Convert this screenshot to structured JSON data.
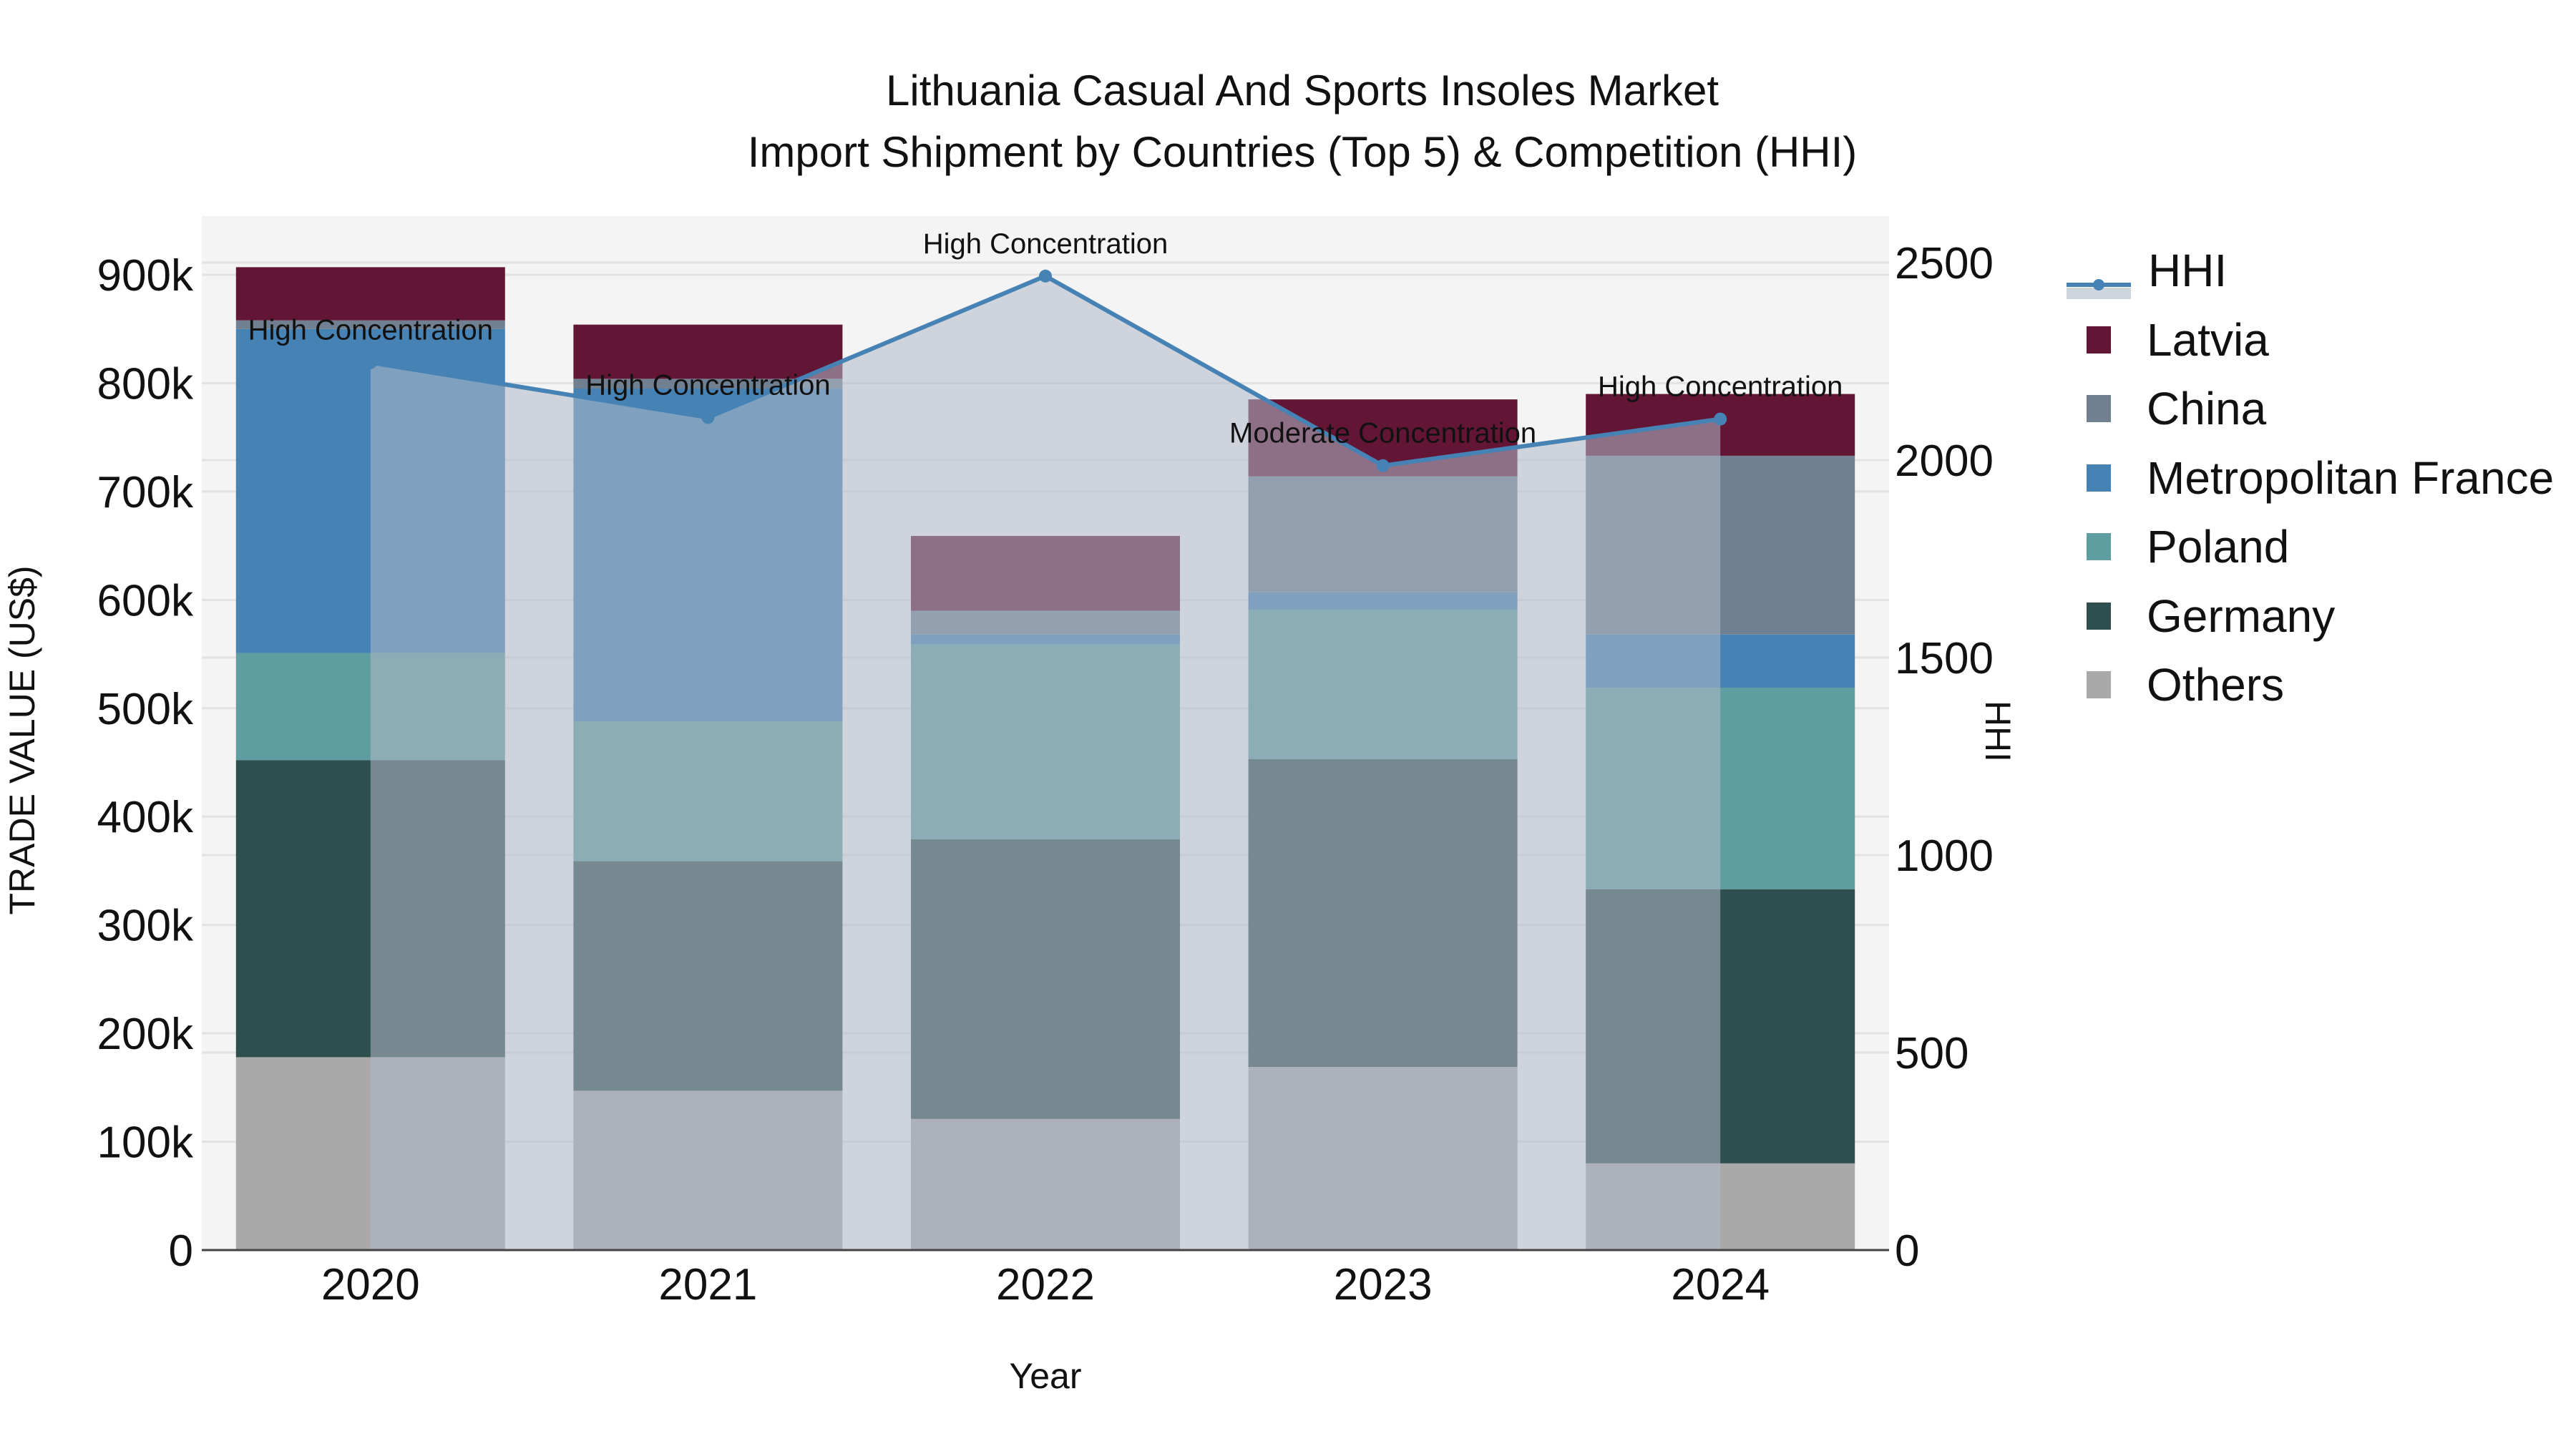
{
  "header": {
    "title_line_1": "Lithuania Casual And Sports Insoles Market",
    "title_line_2": "Import Shipment by Countries (Top 5) & Competition (HHI)"
  },
  "axes": {
    "x_title": "Year",
    "y_left_title": "TRADE VALUE (US$)",
    "y_right_title": "HHI",
    "y_left_ticks": [
      "0",
      "100k",
      "200k",
      "300k",
      "400k",
      "500k",
      "600k",
      "700k",
      "800k",
      "900k"
    ],
    "y_right_ticks": [
      "0",
      "500",
      "1000",
      "1500",
      "2000",
      "2500"
    ]
  },
  "legend": {
    "items": [
      {
        "label": "HHI",
        "kind": "line",
        "color": "#4682b4"
      },
      {
        "label": "Latvia",
        "kind": "bar",
        "color": "#631535"
      },
      {
        "label": "China",
        "kind": "bar",
        "color": "#708090"
      },
      {
        "label": "Metropolitan France",
        "kind": "bar",
        "color": "#4682b4"
      },
      {
        "label": "Poland",
        "kind": "bar",
        "color": "#5f9ea0"
      },
      {
        "label": "Germany",
        "kind": "bar",
        "color": "#2f4f4f"
      },
      {
        "label": "Others",
        "kind": "bar",
        "color": "#a9a9a9"
      }
    ]
  },
  "colors": {
    "plot_bg": "#f4f4f4",
    "hhi_line": "#4682b4",
    "hhi_fill": "rgba(176,186,200,0.55)",
    "grid": "#e2e2e2"
  },
  "chart_data": {
    "type": "bar",
    "stacked": true,
    "title": "Lithuania Casual And Sports Insoles Market\nImport Shipment by Countries (Top 5) & Competition (HHI)",
    "xlabel": "Year",
    "ylabel": "TRADE VALUE (US$)",
    "y2label": "HHI",
    "ylim": [
      0,
      950000
    ],
    "y2lim": [
      0,
      2640
    ],
    "grid": true,
    "legend_position": "right",
    "categories": [
      "2020",
      "2021",
      "2022",
      "2023",
      "2024"
    ],
    "series": [
      {
        "name": "Others",
        "color": "#a9a9a9",
        "values": [
          178000,
          147000,
          121000,
          169000,
          80000
        ]
      },
      {
        "name": "Germany",
        "color": "#2f4f4f",
        "values": [
          274000,
          212000,
          258000,
          284000,
          253000
        ]
      },
      {
        "name": "Poland",
        "color": "#5f9ea0",
        "values": [
          99000,
          129000,
          180000,
          138000,
          186000
        ]
      },
      {
        "name": "Metropolitan France",
        "color": "#4682b4",
        "values": [
          299000,
          307000,
          9000,
          16000,
          49000
        ]
      },
      {
        "name": "China",
        "color": "#708090",
        "values": [
          8000,
          9000,
          22000,
          107000,
          165000
        ]
      },
      {
        "name": "Latvia",
        "color": "#631535",
        "values": [
          49000,
          50000,
          69000,
          71000,
          57000
        ]
      }
    ],
    "line_series": {
      "name": "HHI",
      "axis": "right",
      "type": "line+area",
      "color": "#4682b4",
      "values": [
        2247,
        2108,
        2466,
        1986,
        2104
      ],
      "annotations": [
        "High Concentration",
        "High Concentration",
        "High Concentration",
        "Moderate Concentration",
        "High Concentration"
      ]
    }
  }
}
